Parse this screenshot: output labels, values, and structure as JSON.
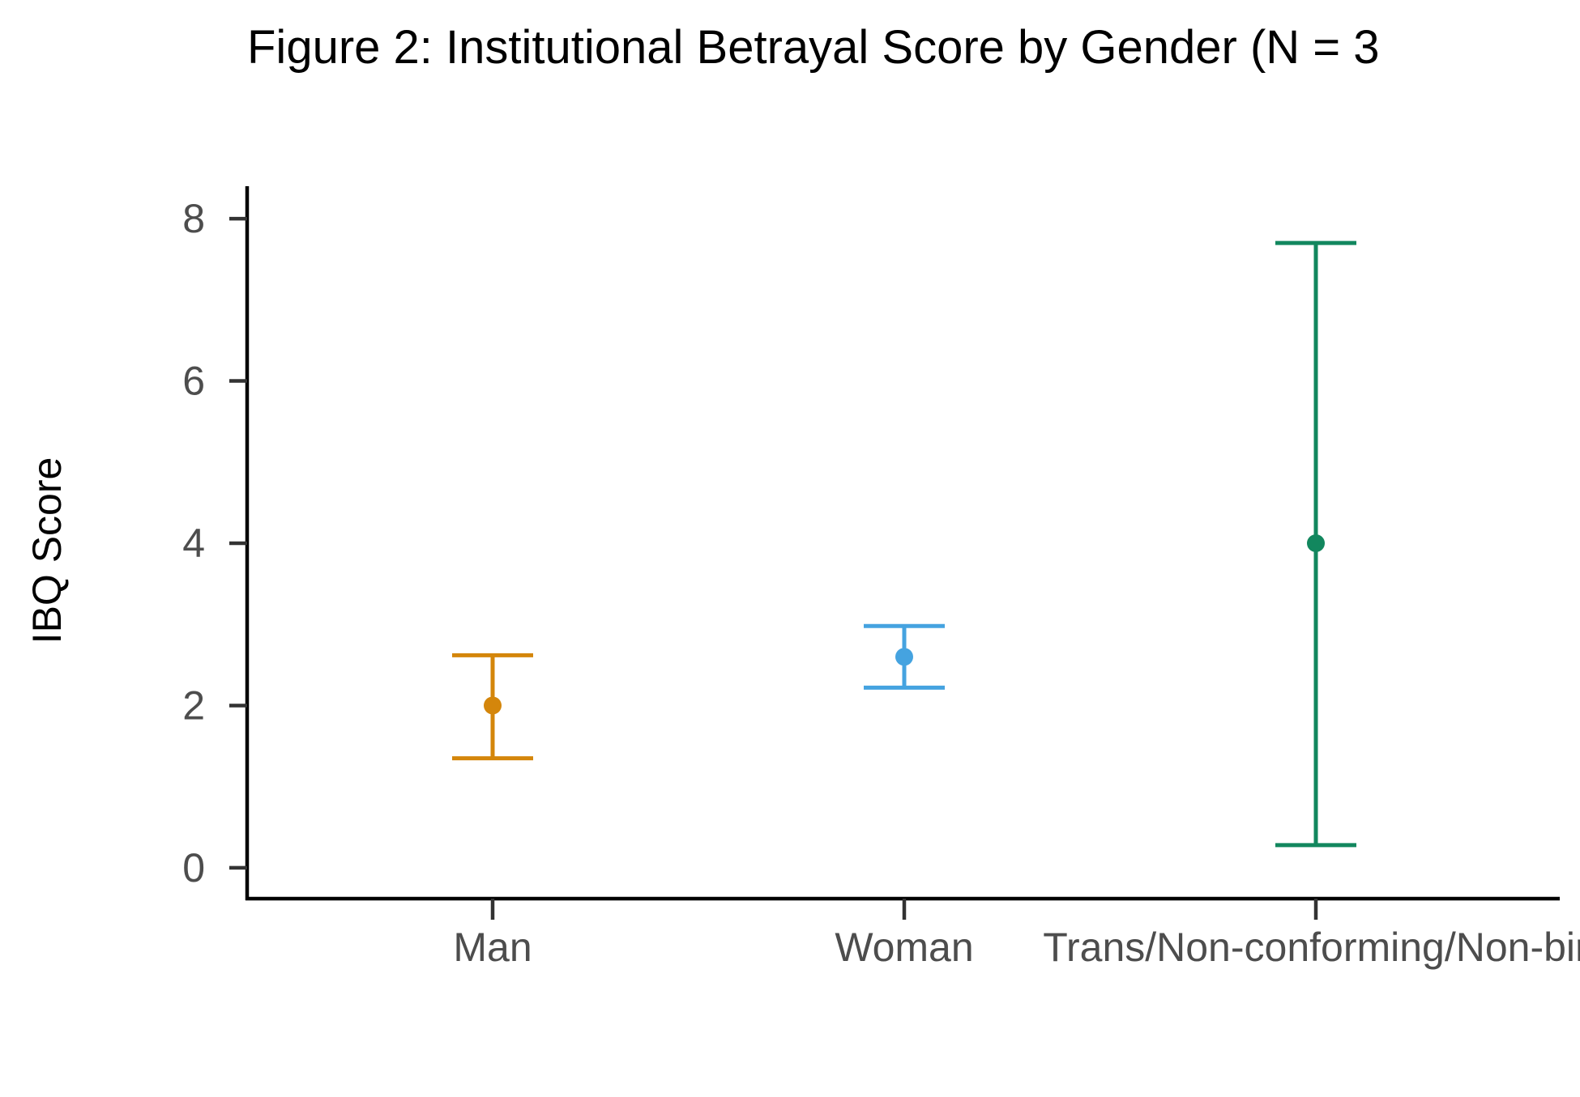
{
  "chart_data": {
    "type": "scatter",
    "title": "Figure 2: Institutional Betrayal Score by Gender (N = 3",
    "ylabel": "IBQ Score",
    "xlabel": "",
    "categories": [
      "Man",
      "Woman",
      "Trans/Non-conforming/Non-bir"
    ],
    "points": [
      {
        "category": "Man",
        "mean": 2.0,
        "lower": 1.35,
        "upper": 2.62,
        "color": "#D4860B"
      },
      {
        "category": "Woman",
        "mean": 2.6,
        "lower": 2.22,
        "upper": 2.98,
        "color": "#45A3E0"
      },
      {
        "category": "Trans/Non-conforming/Non-bir",
        "mean": 4.0,
        "lower": 0.28,
        "upper": 7.7,
        "color": "#12875E"
      }
    ],
    "yticks": [
      0,
      2,
      4,
      6,
      8
    ],
    "ylim": [
      -0.38,
      8.4
    ],
    "grid": false,
    "legend": "none",
    "error_bars": true
  }
}
